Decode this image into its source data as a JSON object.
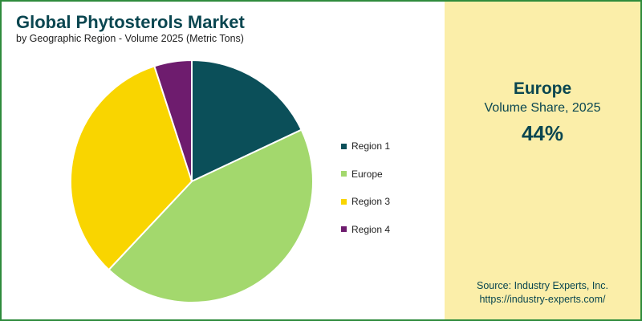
{
  "header": {
    "title": "Global Phytosterols Market",
    "subtitle": "by Geographic Region - Volume 2025 (Metric Tons)"
  },
  "chart_data": {
    "type": "pie",
    "title": "Global Phytosterols Market",
    "subtitle": "by Geographic Region - Volume 2025 (Metric Tons)",
    "categories": [
      "Region 1",
      "Europe",
      "Region 3",
      "Region 4"
    ],
    "values": [
      18,
      44,
      33,
      5
    ],
    "colors": [
      "#0b4f59",
      "#a3d86d",
      "#f9d500",
      "#6e1c6e"
    ],
    "start_angle_deg": 0,
    "direction": "clockwise",
    "legend_position": "right"
  },
  "panel": {
    "region": "Europe",
    "metric": "Volume Share, 2025",
    "value": "44%",
    "source_line1": "Source: Industry Experts, Inc.",
    "source_line2": "https://industry-experts.com/"
  },
  "colors": {
    "border": "#2e8b3c",
    "panel_background": "#fbeea9",
    "title": "#0a4650"
  }
}
